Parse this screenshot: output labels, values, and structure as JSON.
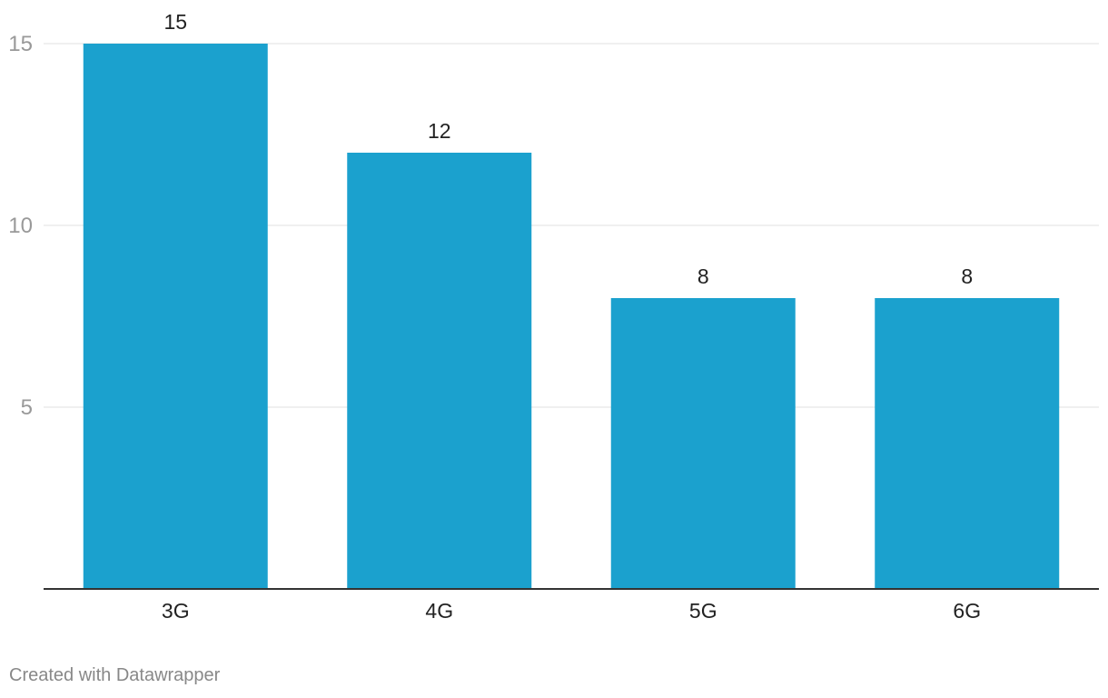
{
  "chart_data": {
    "type": "bar",
    "categories": [
      "3G",
      "4G",
      "5G",
      "6G"
    ],
    "values": [
      15,
      12,
      8,
      8
    ],
    "title": "",
    "xlabel": "",
    "ylabel": "",
    "ylim": [
      0,
      15
    ],
    "yticks": [
      5,
      10,
      15
    ],
    "grid": true,
    "bar_color": "#1ba1ce",
    "show_value_labels": true
  },
  "footer": {
    "credit": "Created with Datawrapper"
  }
}
